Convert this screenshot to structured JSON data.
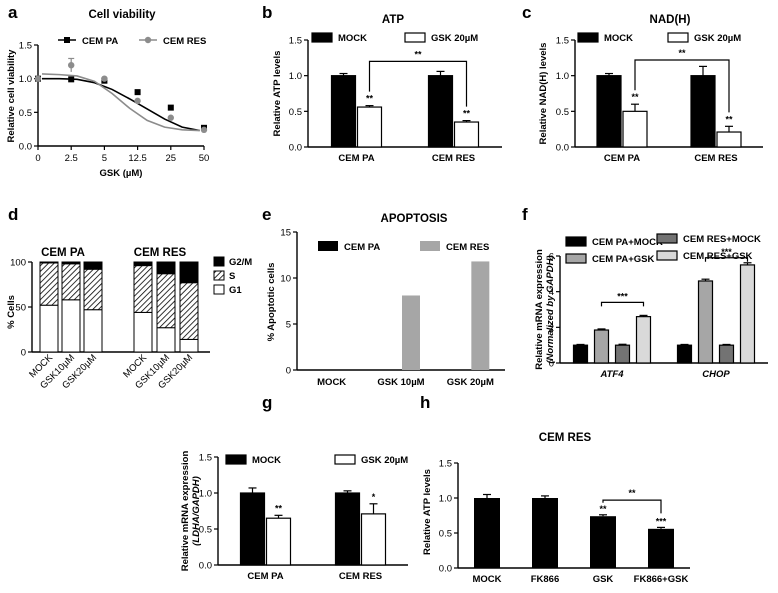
{
  "panels": [
    {
      "id": "a",
      "type": "line",
      "title": "Cell viability",
      "xlabel": "GSK (µM)",
      "ylabel": "Relative cell viability",
      "xticks": [
        "0",
        "2.5",
        "5",
        "12.5",
        "25",
        "50"
      ],
      "yticks": [
        "0.0",
        "0.5",
        "1.0",
        "1.5"
      ],
      "ylim": [
        0,
        1.5
      ],
      "series": [
        {
          "name": "CEM PA",
          "color": "#000000",
          "marker": "square",
          "y": [
            1.0,
            0.99,
            0.97,
            0.8,
            0.57,
            0.27
          ],
          "fit": [
            1.0,
            1.0,
            0.99,
            0.94,
            0.84,
            0.7,
            0.55,
            0.4,
            0.28,
            0.23
          ]
        },
        {
          "name": "CEM RES",
          "color": "#8c8c8c",
          "marker": "circle",
          "y": [
            1.0,
            1.2,
            1.0,
            0.67,
            0.42,
            0.24
          ],
          "err": [
            0,
            0.1,
            0,
            0,
            0,
            0
          ],
          "fit": [
            1.07,
            1.06,
            1.04,
            0.96,
            0.78,
            0.56,
            0.38,
            0.28,
            0.24,
            0.23
          ]
        }
      ]
    },
    {
      "id": "b",
      "type": "bar",
      "title": "ATP",
      "ylabel": "Relative ATP levels",
      "groups": [
        "CEM PA",
        "CEM RES"
      ],
      "yticks": [
        "0.0",
        "0.5",
        "1.0",
        "1.5"
      ],
      "ylim": [
        0,
        1.5
      ],
      "series": [
        {
          "name": "MOCK",
          "fill": "#000000",
          "values": [
            1.0,
            1.0
          ],
          "err": [
            0.03,
            0.06
          ]
        },
        {
          "name": "GSK 20µM",
          "fill": "#ffffff",
          "values": [
            0.56,
            0.35
          ],
          "err": [
            0.02,
            0.02
          ]
        }
      ],
      "stars": [
        {
          "group": 0,
          "series": 1,
          "text": "**"
        },
        {
          "group": 1,
          "series": 1,
          "text": "**"
        }
      ],
      "bracket": {
        "from": [
          0,
          1
        ],
        "to": [
          1,
          1
        ],
        "level": 1.2,
        "text": "**"
      }
    },
    {
      "id": "c",
      "type": "bar",
      "title": "NAD(H)",
      "ylabel": "Relative NAD(H) levels",
      "groups": [
        "CEM PA",
        "CEM RES"
      ],
      "yticks": [
        "0.0",
        "0.5",
        "1.0",
        "1.5"
      ],
      "ylim": [
        0,
        1.5
      ],
      "series": [
        {
          "name": "MOCK",
          "fill": "#000000",
          "values": [
            1.0,
            1.0
          ],
          "err": [
            0.03,
            0.13
          ]
        },
        {
          "name": "GSK 20µM",
          "fill": "#ffffff",
          "values": [
            0.5,
            0.21
          ],
          "err": [
            0.1,
            0.08
          ]
        }
      ],
      "stars": [
        {
          "group": 0,
          "series": 1,
          "text": "**"
        },
        {
          "group": 1,
          "series": 1,
          "text": "**"
        }
      ],
      "bracket": {
        "from": [
          0,
          1
        ],
        "to": [
          1,
          1
        ],
        "level": 1.22,
        "text": "**"
      }
    },
    {
      "id": "d",
      "type": "stacked_bar",
      "ylabel": "% Cells",
      "yticks": [
        "0",
        "50",
        "100"
      ],
      "ylim": [
        0,
        100
      ],
      "group_titles": [
        "CEM PA",
        "CEM RES"
      ],
      "categories": [
        "MOCK",
        "GSK10µM",
        "GSK20µM",
        "MOCK",
        "GSK10µM",
        "GSK20µM"
      ],
      "legend": [
        "G2/M",
        "S",
        "G1"
      ],
      "stacks": [
        {
          "G1": 52,
          "S": 47,
          "G2/M": 1
        },
        {
          "G1": 58,
          "S": 40,
          "G2/M": 2
        },
        {
          "G1": 47,
          "S": 45,
          "G2/M": 8
        },
        {
          "G1": 44,
          "S": 52,
          "G2/M": 4
        },
        {
          "G1": 27,
          "S": 60,
          "G2/M": 13
        },
        {
          "G1": 14,
          "S": 63,
          "G2/M": 23
        }
      ]
    },
    {
      "id": "e",
      "type": "bar",
      "title": "APOPTOSIS",
      "ylabel": "% Apoptotic cells",
      "categories": [
        "MOCK",
        "GSK 10µM",
        "GSK 20µM"
      ],
      "yticks": [
        "0",
        "5",
        "10",
        "15"
      ],
      "ylim": [
        0,
        15
      ],
      "series": [
        {
          "name": "CEM PA",
          "fill": "#000000",
          "values": [
            0,
            0,
            0
          ]
        },
        {
          "name": "CEM RES",
          "fill": "#a6a6a6",
          "values": [
            0,
            8.1,
            11.8
          ]
        }
      ]
    },
    {
      "id": "f",
      "type": "bar",
      "ylabel": [
        "Relative mRNA expression",
        "(Normalized by GAPDH)"
      ],
      "groups": [
        "ATF4",
        "CHOP"
      ],
      "yticks": [
        "0",
        "2",
        "4",
        "6"
      ],
      "ylim": [
        0,
        6
      ],
      "series": [
        {
          "name": "CEM PA+MOCK",
          "fill": "#000000",
          "values": [
            1.0,
            1.0
          ],
          "err": [
            0.04,
            0.04
          ]
        },
        {
          "name": "CEM PA+GSK",
          "fill": "#a6a6a6",
          "values": [
            1.85,
            4.6
          ],
          "err": [
            0.06,
            0.1
          ]
        },
        {
          "name": "CEM RES+MOCK",
          "fill": "#737373",
          "values": [
            1.0,
            1.0
          ],
          "err": [
            0.05,
            0.04
          ]
        },
        {
          "name": "CEM RES+GSK",
          "fill": "#d9d9d9",
          "values": [
            2.6,
            5.5
          ],
          "err": [
            0.07,
            0.12
          ]
        }
      ],
      "brackets": [
        {
          "group": 0,
          "from": 1,
          "to": 3,
          "level": 3.4,
          "text": "***"
        },
        {
          "group": 1,
          "from": 1,
          "to": 3,
          "level": 5.9,
          "text": "***"
        }
      ]
    },
    {
      "id": "g",
      "type": "bar",
      "ylabel": [
        "Relative mRNA expression",
        "(LDHA/GAPDH)"
      ],
      "groups": [
        "CEM PA",
        "CEM RES"
      ],
      "yticks": [
        "0.0",
        "0.5",
        "1.0",
        "1.5"
      ],
      "ylim": [
        0,
        1.5
      ],
      "series": [
        {
          "name": "MOCK",
          "fill": "#000000",
          "values": [
            1.0,
            1.0
          ],
          "err": [
            0.07,
            0.03
          ]
        },
        {
          "name": "GSK 20µM",
          "fill": "#ffffff",
          "values": [
            0.65,
            0.71
          ],
          "err": [
            0.04,
            0.14
          ]
        }
      ],
      "stars": [
        {
          "group": 0,
          "series": 1,
          "text": "**"
        },
        {
          "group": 1,
          "series": 1,
          "text": "*"
        }
      ]
    },
    {
      "id": "h",
      "type": "bar",
      "title": "CEM RES",
      "ylabel": "Relative ATP levels",
      "categories": [
        "MOCK",
        "FK866",
        "GSK",
        "FK866+GSK"
      ],
      "yticks": [
        "0.0",
        "0.5",
        "1.0",
        "1.5"
      ],
      "ylim": [
        0,
        1.5
      ],
      "series": [
        {
          "name": "",
          "fill": "#000000",
          "values": [
            1.0,
            1.0,
            0.74,
            0.56
          ],
          "err": [
            0.05,
            0.03,
            0.02,
            0.02
          ]
        }
      ],
      "stars": [
        {
          "index": 2,
          "text": "**"
        },
        {
          "index": 3,
          "text": "***"
        }
      ],
      "bracket": {
        "from": 2,
        "to": 3,
        "level": 0.97,
        "text": "**"
      }
    }
  ]
}
